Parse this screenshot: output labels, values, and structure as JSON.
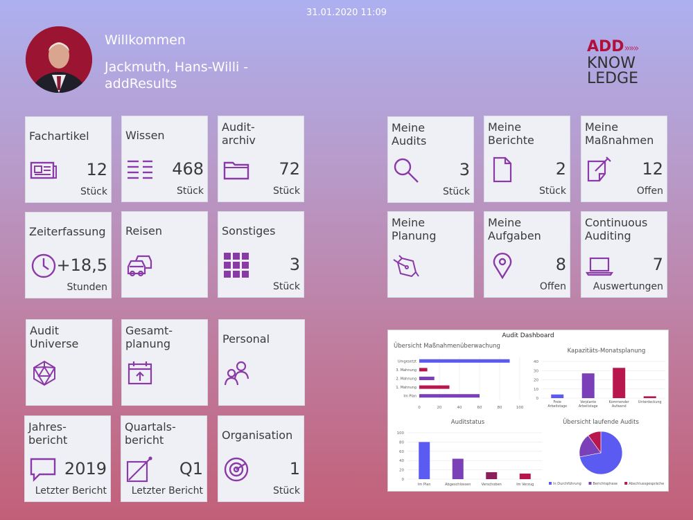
{
  "header": {
    "datetime": "31.01.2020 11:09",
    "welcome": "Willkommen",
    "user_name": "Jackmuth, Hans-Willi - addResults",
    "logo": {
      "line1_add": "ADD",
      "line1_arrows": "»»»",
      "line2": "KNOW",
      "line3": "LEDGE"
    }
  },
  "tiles_left": [
    {
      "title": "Fachartikel",
      "value": "12",
      "unit": "Stück",
      "icon": "newspaper-icon"
    },
    {
      "title": "Wissen",
      "value": "468",
      "unit": "Stück",
      "icon": "list-icon"
    },
    {
      "title": "Audit-\narchiv",
      "value": "72",
      "unit": "Stück",
      "icon": "folder-icon"
    },
    {
      "title": "Zeiterfassung",
      "value": "+18,5",
      "unit": "Stunden",
      "icon": "clock-icon"
    },
    {
      "title": "Reisen",
      "value": "",
      "unit": "",
      "icon": "cars-icon"
    },
    {
      "title": "Sonstiges",
      "value": "3",
      "unit": "Stück",
      "icon": "grid-icon"
    },
    {
      "title": "Audit\nUniverse",
      "value": "",
      "unit": "",
      "icon": "polyhedron-icon"
    },
    {
      "title": "Gesamt-\nplanung",
      "value": "",
      "unit": "",
      "icon": "calendar-icon"
    },
    {
      "title": "Personal",
      "value": "",
      "unit": "",
      "icon": "people-icon"
    },
    {
      "title": "Jahres-\nbericht",
      "value": "2019",
      "unit": "Letzter Bericht",
      "icon": "speech-bubble-icon"
    },
    {
      "title": "Quartals-\nbericht",
      "value": "Q1",
      "unit": "Letzter Bericht",
      "icon": "edit-square-icon"
    },
    {
      "title": "Organisation",
      "value": "1",
      "unit": "Stück",
      "icon": "target-icon"
    }
  ],
  "tiles_right": [
    {
      "title": "Meine\nAudits",
      "value": "3",
      "unit": "Stück",
      "icon": "magnifier-icon"
    },
    {
      "title": "Meine\nBerichte",
      "value": "2",
      "unit": "Stück",
      "icon": "document-icon"
    },
    {
      "title": "Meine\nMaßnahmen",
      "value": "12",
      "unit": "Offen",
      "icon": "note-edit-icon"
    },
    {
      "title": "Meine\nPlanung",
      "value": "",
      "unit": "",
      "icon": "pen-nib-icon"
    },
    {
      "title": "Meine\nAufgaben",
      "value": "8",
      "unit": "Offen",
      "icon": "map-pin-icon"
    },
    {
      "title": "Continuous\nAuditing",
      "value": "7",
      "unit": "Auswertungen",
      "icon": "laptop-icon"
    }
  ],
  "colors": {
    "accent": "#8a3aa6",
    "tile_bg": "#eef0f6",
    "blue": "#5b5bf2",
    "purple": "#7b3fb8",
    "crimson": "#b8174e"
  },
  "chart_data": [
    {
      "type": "bar",
      "orientation": "horizontal",
      "title": "Übersicht Maßnahmenüberwachung",
      "categories": [
        "Umgesetzt",
        "3. Mahnung",
        "2. Mahnung",
        "1. Mahnung",
        "Im Plan"
      ],
      "values": [
        90,
        8,
        15,
        30,
        60
      ],
      "xlim": [
        0,
        100
      ],
      "xticks": [
        0,
        20,
        40,
        60,
        80,
        100
      ]
    },
    {
      "type": "bar",
      "title": "Kapazitäts-Monatsplanung",
      "categories": [
        "Freie Arbeitstage",
        "Verplante Arbeitstage",
        "Kommender Aufwand",
        "Unterdeckung"
      ],
      "values": [
        4,
        27,
        33,
        2
      ],
      "ylim": [
        0,
        40
      ],
      "yticks": [
        0,
        10,
        20,
        30,
        40
      ]
    },
    {
      "type": "bar",
      "title": "Auditstatus",
      "categories": [
        "Im Plan",
        "Abgeschlossen",
        "Verschoben",
        "Im Verzug"
      ],
      "values": [
        80,
        44,
        15,
        12
      ],
      "ylim": [
        0,
        100
      ],
      "yticks": [
        0,
        20,
        40,
        60,
        80,
        100
      ]
    },
    {
      "type": "pie",
      "title": "Übersicht laufende Audits",
      "categories": [
        "In Durchführung",
        "Berichtsphase",
        "Abschlussgespräche"
      ],
      "values": [
        72,
        18,
        10
      ],
      "legend": "bottom"
    }
  ],
  "dashboard_title": "Audit Dashboard"
}
